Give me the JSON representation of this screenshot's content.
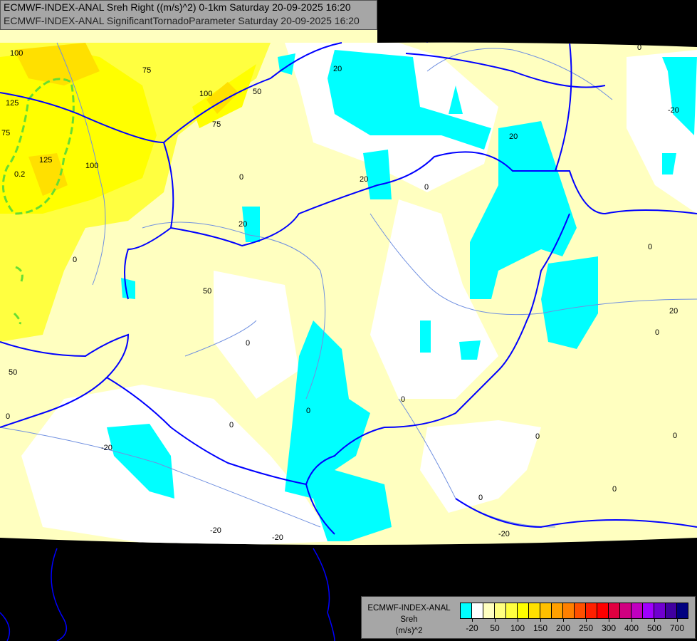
{
  "header": {
    "line1": "ECMWF-INDEX-ANAL Sreh Right ((m/s)^2) 0-1km Saturday 20-09-2025 16:20",
    "line2": "ECMWF-INDEX-ANAL SignificantTornadoParameter Saturday 20-09-2025 16:20"
  },
  "legend": {
    "title_lines": [
      "ECMWF-INDEX-ANAL",
      "Sreh",
      "(m/s)^2"
    ],
    "colors": [
      "#00ffff",
      "#ffffff",
      "#ffffc0",
      "#ffff80",
      "#ffff40",
      "#ffff00",
      "#ffe000",
      "#ffc000",
      "#ffa000",
      "#ff8000",
      "#ff5000",
      "#ff2000",
      "#ff0000",
      "#e00040",
      "#d00080",
      "#c000c0",
      "#a000ff",
      "#7000d0",
      "#4000a0",
      "#000080"
    ],
    "tick_labels": [
      "-20",
      "50",
      "100",
      "150",
      "200",
      "250",
      "300",
      "400",
      "500",
      "700"
    ]
  },
  "map": {
    "colors": {
      "background": "#000000",
      "border": "#0000ff",
      "river": "#7090e0",
      "stp_contour": "#66dd33"
    },
    "contour_labels": [
      "100",
      "75",
      "125",
      "75",
      "100",
      "125",
      "100",
      "75",
      "50",
      "20",
      "0",
      "20",
      "0.2",
      "20",
      "0",
      "20",
      "-20",
      "0",
      "-20",
      "0",
      "0",
      "50",
      "50",
      "0",
      "0",
      "20",
      "-20",
      "0",
      "0",
      "0",
      "0",
      "0",
      "-20",
      "-20",
      "0",
      "0",
      "0"
    ]
  }
}
